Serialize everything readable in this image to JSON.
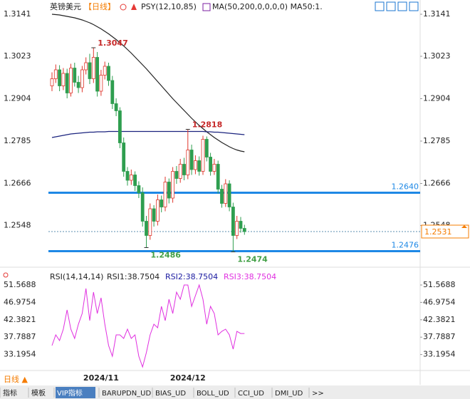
{
  "header": {
    "title": "英镑美元",
    "period": "【日线】",
    "indicators": [
      "PSY(12,10,85)",
      "MA(50,200,0,0,0,0) MA50:1."
    ]
  },
  "chart_data": [
    {
      "type": "candlestick",
      "categories": [
        null,
        null,
        null,
        null,
        null,
        null,
        null,
        null,
        null,
        null,
        null,
        null,
        null,
        "2024/11",
        null,
        null,
        null,
        null,
        null,
        null,
        null,
        null,
        null,
        null,
        null,
        null,
        null,
        null,
        null,
        null,
        null,
        null,
        null,
        null,
        null,
        null,
        "2024/12",
        null,
        null,
        null,
        null,
        null,
        null,
        null,
        null,
        null,
        null,
        null,
        null,
        null,
        null,
        null
      ],
      "open": [
        1.294,
        1.296,
        1.2985,
        1.294,
        1.2975,
        1.292,
        1.299,
        1.295,
        1.2935,
        1.2985,
        1.3005,
        1.296,
        1.302,
        1.2925,
        1.297,
        1.2995,
        1.2955,
        1.289,
        1.287,
        1.278,
        1.27,
        1.2675,
        1.269,
        1.266,
        1.264,
        1.256,
        1.252,
        1.2595,
        1.256,
        1.262,
        1.26,
        1.267,
        1.2625,
        1.27,
        1.268,
        1.272,
        1.269,
        1.276,
        1.2705,
        1.273,
        1.27,
        1.279,
        1.274,
        1.27,
        1.272,
        1.265,
        1.261,
        1.2665,
        1.26,
        1.252,
        1.256,
        1.254
      ],
      "high": [
        1.2978,
        1.3,
        1.2998,
        1.299,
        1.2988,
        1.3002,
        1.3005,
        1.2968,
        1.2996,
        1.302,
        1.303,
        1.3047,
        1.3035,
        1.2985,
        1.3008,
        1.3005,
        1.2968,
        1.2905,
        1.288,
        1.2795,
        1.2712,
        1.2705,
        1.27,
        1.2672,
        1.2655,
        1.2575,
        1.261,
        1.2605,
        1.2635,
        1.2632,
        1.2685,
        1.268,
        1.2712,
        1.2715,
        1.2735,
        1.2738,
        1.2818,
        1.2775,
        1.2745,
        1.2742,
        1.28,
        1.2798,
        1.2752,
        1.2735,
        1.273,
        1.2662,
        1.2678,
        1.2675,
        1.2612,
        1.2575,
        1.2572,
        1.255
      ],
      "low": [
        1.2925,
        1.2948,
        1.2925,
        1.2928,
        1.2905,
        1.291,
        1.2938,
        1.292,
        1.2922,
        1.2972,
        1.2945,
        1.2948,
        1.291,
        1.2912,
        1.2958,
        1.294,
        1.2875,
        1.2855,
        1.2765,
        1.2685,
        1.266,
        1.2662,
        1.2645,
        1.2625,
        1.2545,
        1.2486,
        1.2508,
        1.2545,
        1.2548,
        1.2585,
        1.2588,
        1.261,
        1.2612,
        1.2665,
        1.2668,
        1.2675,
        1.2678,
        1.269,
        1.2692,
        1.2688,
        1.269,
        1.2728,
        1.2688,
        1.269,
        1.2638,
        1.2598,
        1.26,
        1.2588,
        1.2474,
        1.251,
        1.2528,
        1.2522
      ],
      "close": [
        1.296,
        1.2985,
        1.294,
        1.2975,
        1.292,
        1.299,
        1.295,
        1.2935,
        1.2985,
        1.3005,
        1.296,
        1.302,
        1.2925,
        1.297,
        1.2995,
        1.2955,
        1.289,
        1.287,
        1.278,
        1.27,
        1.2675,
        1.269,
        1.266,
        1.264,
        1.256,
        1.252,
        1.2595,
        1.256,
        1.262,
        1.26,
        1.267,
        1.2625,
        1.27,
        1.268,
        1.272,
        1.269,
        1.276,
        1.2705,
        1.273,
        1.27,
        1.279,
        1.274,
        1.27,
        1.272,
        1.265,
        1.261,
        1.2665,
        1.26,
        1.252,
        1.256,
        1.254,
        1.2531
      ],
      "up_color": "#e0352b",
      "down_color": "#2e9e4f",
      "lines": [
        {
          "color": "#222222",
          "values": [
            1.3141,
            1.314,
            1.3139,
            1.3137,
            1.3135,
            1.3133,
            1.3131,
            1.3128,
            1.3125,
            1.3121,
            1.3117,
            1.3112,
            1.3106,
            1.31,
            1.3093,
            1.3086,
            1.3078,
            1.307,
            1.3061,
            1.3052,
            1.3042,
            1.3032,
            1.3021,
            1.301,
            1.2999,
            1.2988,
            1.2976,
            1.2964,
            1.2952,
            1.294,
            1.2928,
            1.2916,
            1.2904,
            1.2893,
            1.2882,
            1.2871,
            1.286,
            1.2849,
            1.2839,
            1.2829,
            1.282,
            1.2811,
            1.2803,
            1.2795,
            1.2788,
            1.2781,
            1.2775,
            1.2769,
            1.2764,
            1.276,
            1.2757,
            1.2755
          ]
        },
        {
          "color": "#1a237e",
          "values": [
            1.2795,
            1.2797,
            1.2799,
            1.2801,
            1.2803,
            1.2805,
            1.2806,
            1.2807,
            1.2808,
            1.2809,
            1.281,
            1.281,
            1.2811,
            1.2811,
            1.2811,
            1.2812,
            1.2812,
            1.2812,
            1.2812,
            1.2812,
            1.2812,
            1.2812,
            1.2812,
            1.2812,
            1.2812,
            1.2812,
            1.2812,
            1.2812,
            1.2812,
            1.2812,
            1.2812,
            1.2812,
            1.2812,
            1.2812,
            1.2812,
            1.2812,
            1.2812,
            1.2812,
            1.2812,
            1.2812,
            1.2812,
            1.2811,
            1.2811,
            1.281,
            1.281,
            1.2809,
            1.2808,
            1.2807,
            1.2806,
            1.2805,
            1.2804,
            1.2803
          ]
        }
      ],
      "ylim": [
        1.2441,
        1.3161
      ],
      "yticks": [
        1.3141,
        1.3023,
        1.2904,
        1.2785,
        1.2666,
        1.2548
      ],
      "annotations": [
        {
          "value": 1.3047,
          "color": "#c62828"
        },
        {
          "value": 1.2818,
          "color": "#c62828"
        },
        {
          "value": 1.2486,
          "color": "#43a047"
        },
        {
          "value": 1.2474,
          "color": "#43a047"
        }
      ],
      "levels": [
        {
          "value": 1.264,
          "label": "1.2640",
          "color": "#1e88e5"
        },
        {
          "value": 1.2476,
          "label": "1.2476",
          "color": "#1e88e5"
        }
      ],
      "last": {
        "value": 1.2531,
        "color": "#f57c00"
      }
    },
    {
      "type": "line",
      "title": "RSI(14,14,14)",
      "legend": [
        {
          "text": "RSI1:38.7504",
          "color": "#222222"
        },
        {
          "text": "RSI2:38.7504",
          "color": "#1a1aa0"
        },
        {
          "text": "RSI3:38.7504",
          "color": "#e030e0"
        }
      ],
      "color": "#e030e0",
      "values": [
        35.57,
        38.39,
        36.88,
        39.9,
        44.98,
        39.9,
        37.45,
        41.21,
        44.04,
        50.63,
        42.16,
        49.69,
        44.04,
        48.18,
        41.21,
        35.57,
        32.74,
        38.39,
        38.39,
        37.45,
        39.9,
        37.45,
        38.39,
        32.74,
        29.92,
        33.68,
        38.39,
        41.21,
        40.27,
        45.92,
        42.16,
        47.8,
        44.04,
        49.69,
        47.8,
        51.57,
        51.57,
        45.92,
        48.74,
        51.57,
        47.8,
        41.21,
        45.92,
        44.04,
        38.39,
        39.33,
        39.9,
        38.39,
        34.63,
        39.33,
        38.75,
        38.7504
      ],
      "ylim": [
        28.98,
        54.39
      ],
      "yticks": [
        51.5688,
        46.9754,
        42.3821,
        37.7887,
        33.1954
      ]
    }
  ],
  "toolbar": {
    "period": "日线 ▲",
    "tabs": [
      "指标",
      "模板",
      "VIP指标",
      "BARUPDN_UD",
      "BIAS_UD",
      "BOLL_UD",
      "CCI_UD",
      "DMI_UD",
      ">>"
    ]
  }
}
